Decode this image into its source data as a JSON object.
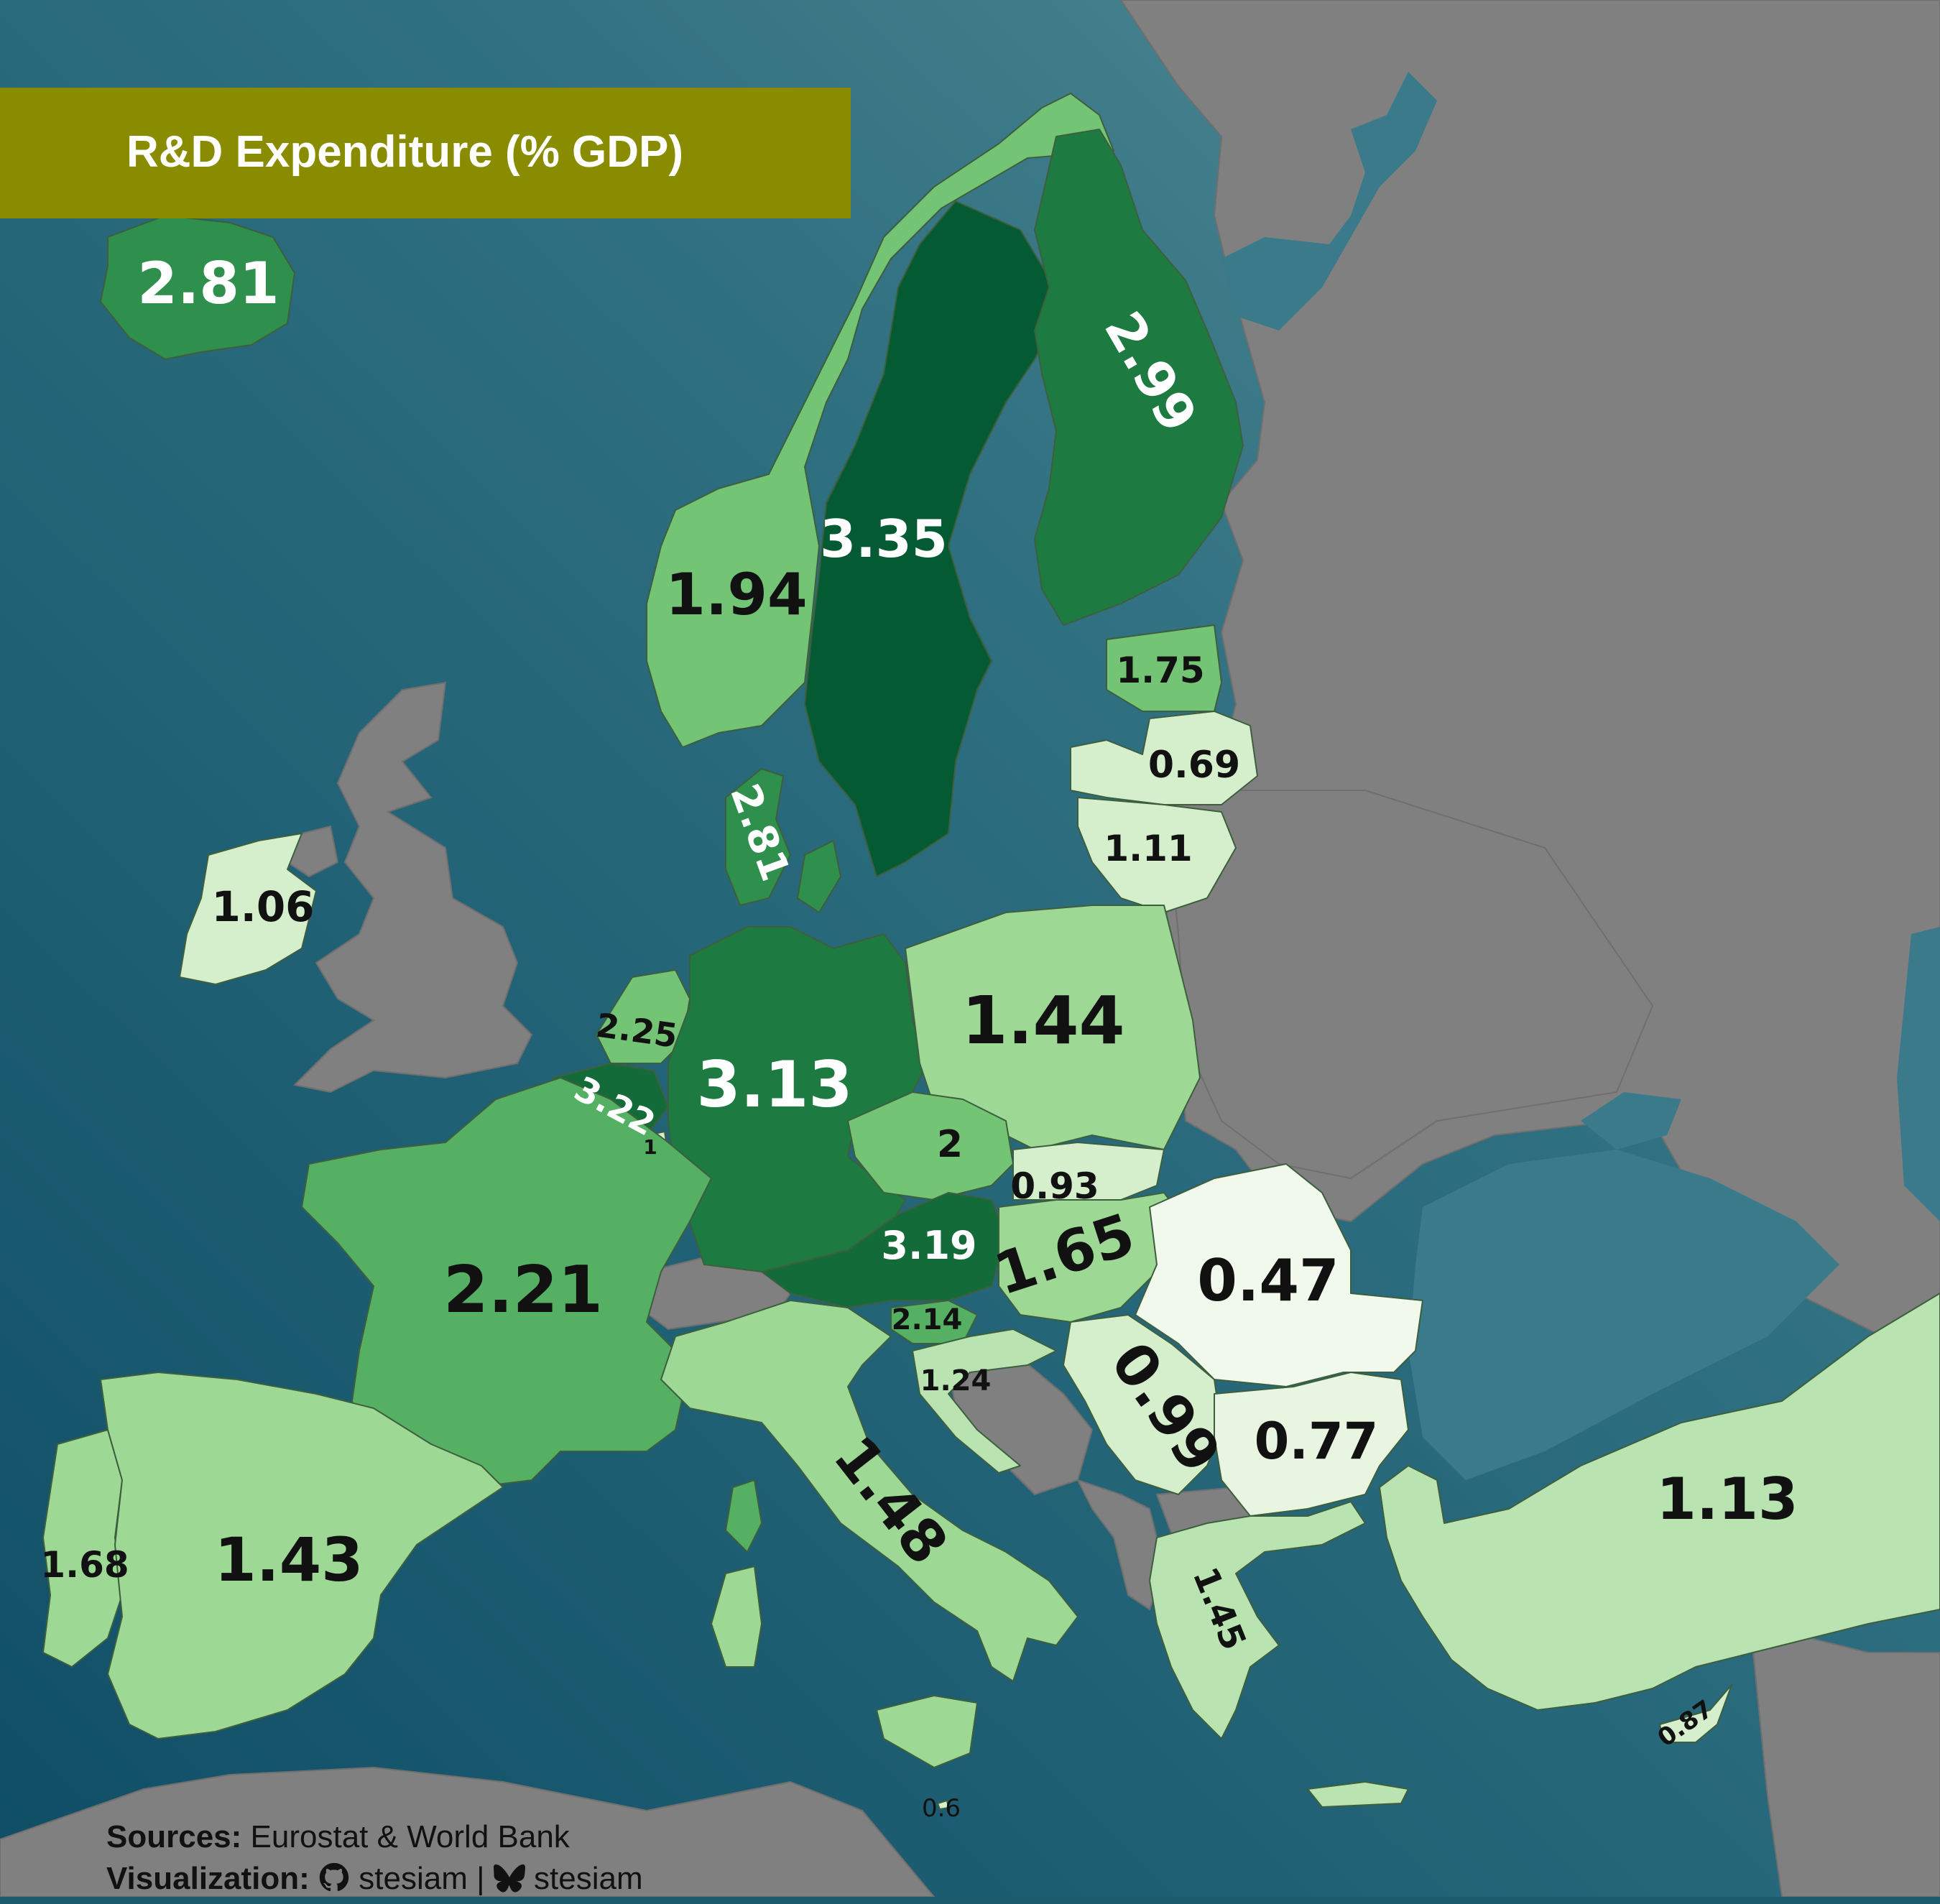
{
  "title": "R&D Expenditure (% GDP)",
  "colors": {
    "sea": "#1d5b6f",
    "non_data_land": "#808080",
    "title_bar": "#8a8c00",
    "scale": [
      "#f0f9ec",
      "#d5efcd",
      "#b9e4b1",
      "#9dd895",
      "#74c476",
      "#56b063",
      "#2f8f4c",
      "#1d7b41",
      "#136b39",
      "#045a32"
    ]
  },
  "countries": [
    {
      "name": "Iceland",
      "value": "2.81"
    },
    {
      "name": "Sweden",
      "value": "3.35"
    },
    {
      "name": "Finland",
      "value": "2.99"
    },
    {
      "name": "Norway",
      "value": "1.94"
    },
    {
      "name": "Estonia",
      "value": "1.75"
    },
    {
      "name": "Latvia",
      "value": "0.69"
    },
    {
      "name": "Lithuania",
      "value": "1.11"
    },
    {
      "name": "Denmark",
      "value": "2.81"
    },
    {
      "name": "Ireland",
      "value": "1.06"
    },
    {
      "name": "Netherlands",
      "value": "2.25"
    },
    {
      "name": "Belgium",
      "value": "3.22"
    },
    {
      "name": "Luxembourg",
      "value": "1"
    },
    {
      "name": "Germany",
      "value": "3.13"
    },
    {
      "name": "Poland",
      "value": "1.44"
    },
    {
      "name": "Czechia",
      "value": "2"
    },
    {
      "name": "Slovakia",
      "value": "0.93"
    },
    {
      "name": "Austria",
      "value": "3.19"
    },
    {
      "name": "Hungary",
      "value": "1.65"
    },
    {
      "name": "Romania",
      "value": "0.47"
    },
    {
      "name": "France",
      "value": "2.21"
    },
    {
      "name": "Slovenia",
      "value": "2.14"
    },
    {
      "name": "Croatia",
      "value": "1.24"
    },
    {
      "name": "Serbia",
      "value": "0.99"
    },
    {
      "name": "Bulgaria",
      "value": "0.77"
    },
    {
      "name": "Turkey",
      "value": "1.13"
    },
    {
      "name": "Italy",
      "value": "1.48"
    },
    {
      "name": "Portugal",
      "value": "1.68"
    },
    {
      "name": "Spain",
      "value": "1.43"
    },
    {
      "name": "Greece",
      "value": "1.45"
    },
    {
      "name": "Cyprus",
      "value": "0.87"
    },
    {
      "name": "Malta",
      "value": "0.6"
    }
  ],
  "credits": {
    "sources_label": "Sources:",
    "sources_text": "Eurostat & World Bank",
    "viz_label": "Visualization:",
    "github_handle": "stesiam",
    "separator": "|",
    "bluesky_handle": "stesiam",
    "github_icon": "github-icon",
    "bluesky_icon": "bluesky-butterfly-icon"
  }
}
